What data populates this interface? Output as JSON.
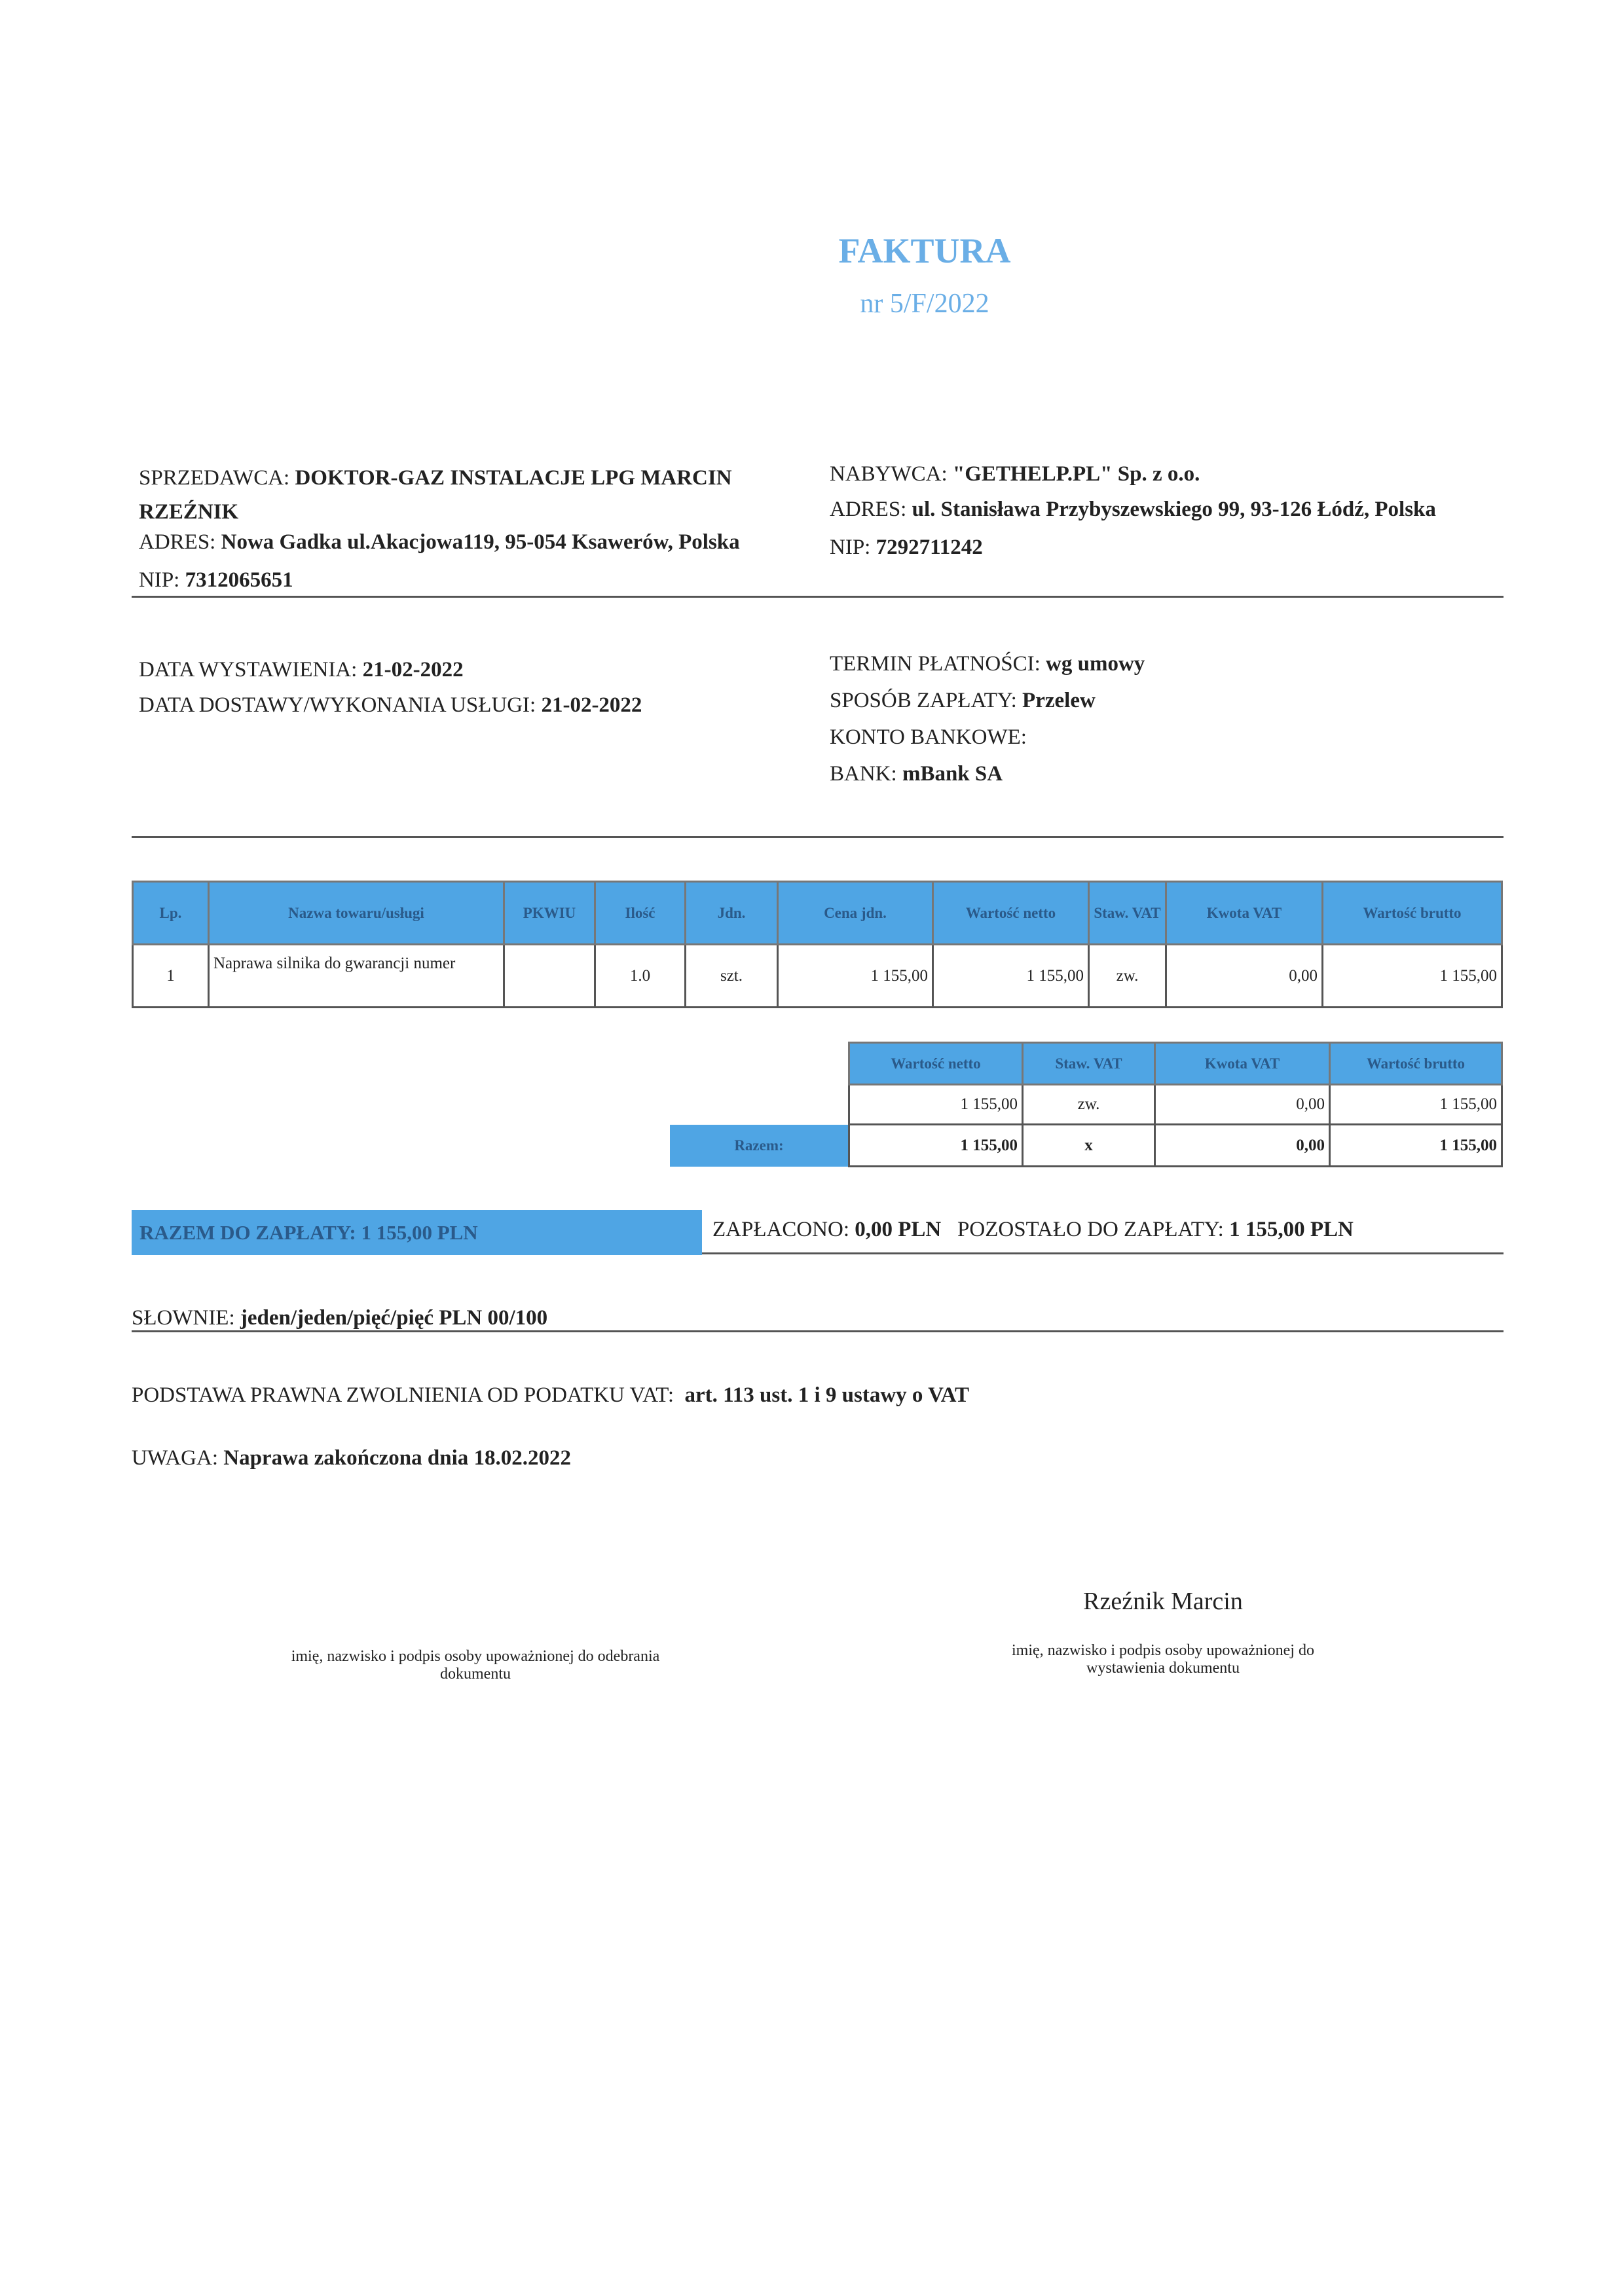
{
  "header": {
    "title": "FAKTURA",
    "number": "nr 5/F/2022"
  },
  "seller": {
    "label": "SPRZEDAWCA:",
    "name_line1": "DOKTOR-GAZ INSTALACJE LPG MARCIN",
    "name_line2": "RZEŹNIK",
    "address_label": "ADRES:",
    "address": "Nowa Gadka ul.Akacjowa119, 95-054 Ksawerów, Polska",
    "nip_label": "NIP:",
    "nip": "7312065651"
  },
  "buyer": {
    "label": "NABYWCA:",
    "name": "\"GETHELP.PL\" Sp. z o.o.",
    "address_label": "ADRES:",
    "address": "ul. Stanisława Przybyszewskiego 99, 93-126 Łódź, Polska",
    "nip_label": "NIP:",
    "nip": "7292711242"
  },
  "dates": {
    "issue_label": "DATA WYSTAWIENIA:",
    "issue": "21-02-2022",
    "delivery_label": "DATA DOSTAWY/WYKONANIA USŁUGI:",
    "delivery": "21-02-2022"
  },
  "payment": {
    "term_label": "TERMIN PŁATNOŚCI:",
    "term": "wg umowy",
    "method_label": "SPOSÓB ZAPŁATY:",
    "method": "Przelew",
    "account_label": "KONTO BANKOWE:",
    "bank_label": "BANK:",
    "bank": "mBank SA"
  },
  "items_table": {
    "headers": [
      "Lp.",
      "Nazwa towaru/usługi",
      "PKWIU",
      "Ilość",
      "Jdn.",
      "Cena jdn.",
      "Wartość netto",
      "Staw. VAT",
      "Kwota VAT",
      "Wartość brutto"
    ],
    "rows": [
      [
        "1",
        "Naprawa silnika do gwarancji numer",
        "",
        "1.0",
        "szt.",
        "1 155,00",
        "1 155,00",
        "zw.",
        "0,00",
        "1 155,00"
      ]
    ]
  },
  "summary_table": {
    "headers": [
      "Wartość netto",
      "Staw. VAT",
      "Kwota VAT",
      "Wartość brutto"
    ],
    "row": [
      "1 155,00",
      "zw.",
      "0,00",
      "1 155,00"
    ],
    "total_label": "Razem:",
    "total": [
      "1 155,00",
      "x",
      "0,00",
      "1 155,00"
    ]
  },
  "totals": {
    "due_label": "RAZEM DO ZAPŁATY: 1 155,00 PLN",
    "paid_label": "ZAPŁACONO:",
    "paid": "0,00 PLN",
    "remaining_label": "POZOSTAŁO DO ZAPŁATY:",
    "remaining": "1 155,00 PLN"
  },
  "words": {
    "label": "SŁOWNIE:",
    "value": "jeden/jeden/pięć/pięć PLN 00/100"
  },
  "legal": {
    "label": "PODSTAWA PRAWNA ZWOLNIENIA OD PODATKU VAT:",
    "value": "art. 113 ust. 1 i 9 ustawy o VAT"
  },
  "note": {
    "label": "UWAGA:",
    "value": "Naprawa zakończona dnia 18.02.2022"
  },
  "signatures": {
    "issuer_name": "Rzeźnik Marcin",
    "receiver_caption_1": "imię, nazwisko i podpis osoby upoważnionej do odebrania",
    "receiver_caption_2": "dokumentu",
    "issuer_caption_1": "imię, nazwisko i podpis osoby upoważnionej do",
    "issuer_caption_2": "wystawienia dokumentu"
  },
  "colors": {
    "accent": "#4fa5e4",
    "title": "#6aaee6"
  }
}
